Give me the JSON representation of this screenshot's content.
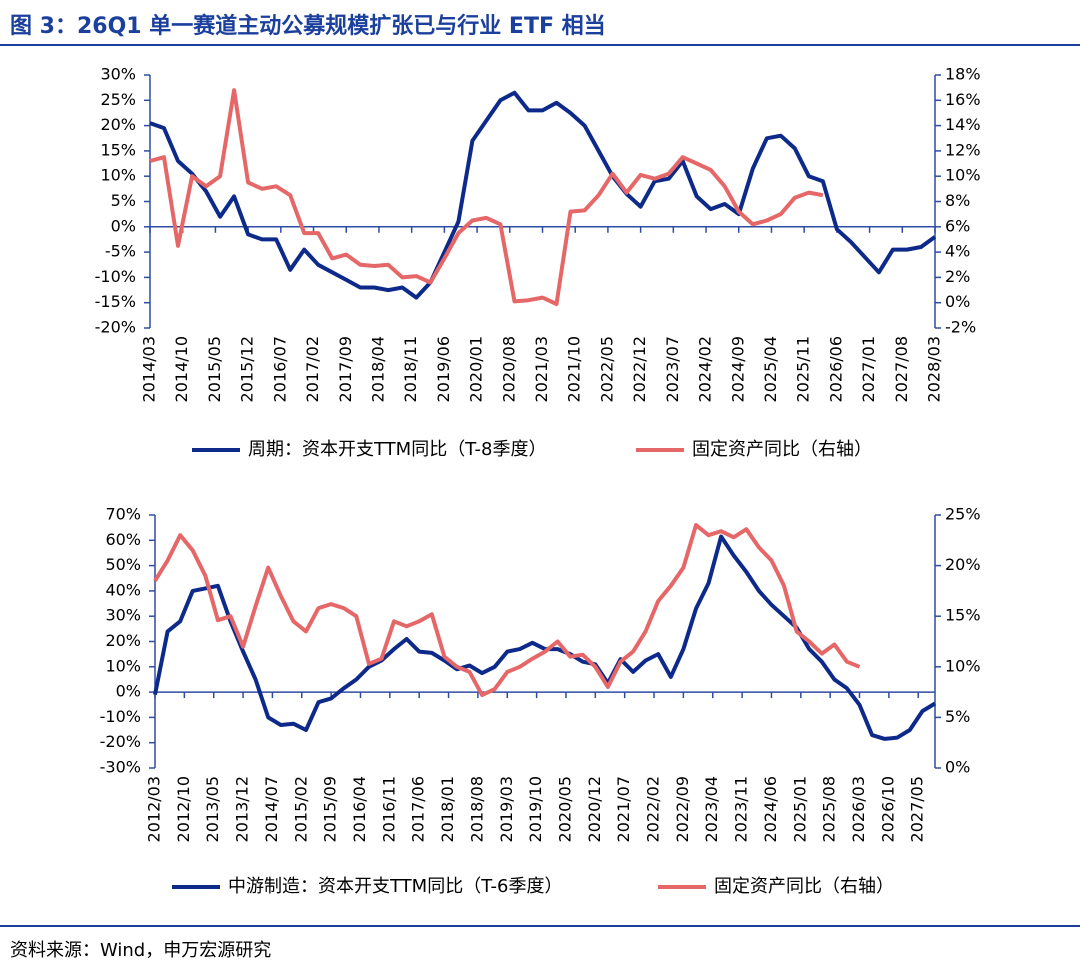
{
  "header": {
    "title": "图 3：26Q1 单一赛道主动公募规模扩张已与行业 ETF 相当"
  },
  "footer": {
    "source": "资料来源：Wind，申万宏源研究"
  },
  "chart_data": [
    {
      "type": "line",
      "x": [
        "2014/03",
        "2014/06",
        "2014/09",
        "2014/12",
        "2015/03",
        "2015/06",
        "2015/09",
        "2015/12",
        "2016/03",
        "2016/06",
        "2016/09",
        "2016/12",
        "2017/03",
        "2017/06",
        "2017/09",
        "2017/12",
        "2018/03",
        "2018/06",
        "2018/09",
        "2018/12",
        "2019/03",
        "2019/06",
        "2019/09",
        "2019/12",
        "2020/03",
        "2020/06",
        "2020/09",
        "2020/12",
        "2021/03",
        "2021/06",
        "2021/09",
        "2021/12",
        "2022/03",
        "2022/06",
        "2022/09",
        "2022/12",
        "2023/03",
        "2023/06",
        "2023/09",
        "2023/12",
        "2024/03",
        "2024/06",
        "2024/09",
        "2024/12",
        "2025/03",
        "2025/06",
        "2025/09",
        "2025/12",
        "2026/03",
        "2026/06",
        "2026/09",
        "2026/12",
        "2027/03",
        "2027/06",
        "2027/09",
        "2027/12",
        "2028/03"
      ],
      "xlim": [
        "2014/03",
        "2028/03"
      ],
      "xticks": [
        "2014/03",
        "2014/10",
        "2015/05",
        "2015/12",
        "2016/07",
        "2017/02",
        "2017/09",
        "2018/04",
        "2018/11",
        "2019/06",
        "2020/01",
        "2020/08",
        "2021/03",
        "2021/10",
        "2022/05",
        "2022/12",
        "2023/07",
        "2024/02",
        "2024/09",
        "2025/04",
        "2025/11",
        "2026/06",
        "2027/01",
        "2027/08",
        "2028/03"
      ],
      "ylim": [
        -20,
        30
      ],
      "yticks": [
        {
          "value": -20,
          "label": "-20%"
        },
        {
          "value": -15,
          "label": "-15%"
        },
        {
          "value": -10,
          "label": "-10%"
        },
        {
          "value": -5,
          "label": "-5%"
        },
        {
          "value": 0,
          "label": "0%"
        },
        {
          "value": 5,
          "label": "5%"
        },
        {
          "value": 10,
          "label": "10%"
        },
        {
          "value": 15,
          "label": "15%"
        },
        {
          "value": 20,
          "label": "20%"
        },
        {
          "value": 25,
          "label": "25%"
        },
        {
          "value": 30,
          "label": "30%"
        }
      ],
      "y2lim": [
        -2,
        18
      ],
      "y2ticks": [
        {
          "value": -2,
          "label": "-2%"
        },
        {
          "value": 0,
          "label": "0%"
        },
        {
          "value": 2,
          "label": "2%"
        },
        {
          "value": 4,
          "label": "4%"
        },
        {
          "value": 6,
          "label": "6%"
        },
        {
          "value": 8,
          "label": "8%"
        },
        {
          "value": 10,
          "label": "10%"
        },
        {
          "value": 12,
          "label": "12%"
        },
        {
          "value": 14,
          "label": "14%"
        },
        {
          "value": 16,
          "label": "16%"
        },
        {
          "value": 18,
          "label": "18%"
        }
      ],
      "series": [
        {
          "name": "周期：资本开支TTM同比（T-8季度）",
          "color": "#0d2a8a",
          "values": [
            20.5,
            19.5,
            13,
            10.5,
            7,
            2,
            6,
            -1.5,
            -2.5,
            -2.5,
            -8.5,
            -4.5,
            -7.5,
            -9,
            -10.5,
            -12,
            -12,
            -12.5,
            -12,
            -14,
            -11,
            -5,
            1,
            17,
            21,
            25,
            26.5,
            23,
            23,
            24.5,
            22.5,
            20,
            15,
            10,
            6.5,
            4,
            9,
            9.5,
            13,
            6,
            3.5,
            4.5,
            2.5,
            11.5,
            17.5,
            18,
            15.5,
            10,
            9,
            -0.5,
            -3,
            -6,
            -9,
            -4.5,
            -4.5,
            -4,
            -2
          ]
        },
        {
          "name": "固定资产同比（右轴）",
          "color": "#e56767",
          "axis": "y2",
          "values": [
            11.2,
            11.5,
            4.5,
            10,
            9.2,
            10,
            16.8,
            9.5,
            9,
            9.2,
            8.5,
            5.5,
            5.5,
            3.5,
            3.8,
            3.0,
            2.9,
            3.0,
            2.0,
            2.1,
            1.6,
            3.5,
            5.5,
            6.5,
            6.7,
            6.2,
            0.1,
            0.2,
            0.4,
            -0.1,
            7.2,
            7.3,
            8.5,
            10.2,
            8.7,
            10.1,
            9.8,
            10.2,
            11.5,
            11,
            10.5,
            9.2,
            7.2,
            6.2,
            6.5,
            7,
            8.3,
            8.7,
            8.5,
            null,
            null,
            null,
            null,
            null,
            null,
            null,
            null
          ]
        }
      ]
    },
    {
      "type": "line",
      "x": [
        "2012/03",
        "2012/06",
        "2012/09",
        "2012/12",
        "2013/03",
        "2013/06",
        "2013/09",
        "2013/12",
        "2014/03",
        "2014/06",
        "2014/09",
        "2014/12",
        "2015/03",
        "2015/06",
        "2015/09",
        "2015/12",
        "2016/03",
        "2016/06",
        "2016/09",
        "2016/12",
        "2017/03",
        "2017/06",
        "2017/09",
        "2017/12",
        "2018/03",
        "2018/06",
        "2018/09",
        "2018/12",
        "2019/03",
        "2019/06",
        "2019/09",
        "2019/12",
        "2020/03",
        "2020/06",
        "2020/09",
        "2020/12",
        "2021/03",
        "2021/06",
        "2021/09",
        "2021/12",
        "2022/03",
        "2022/06",
        "2022/09",
        "2022/12",
        "2023/03",
        "2023/06",
        "2023/09",
        "2023/12",
        "2024/03",
        "2024/06",
        "2024/09",
        "2024/12",
        "2025/03",
        "2025/06",
        "2025/09",
        "2025/12",
        "2026/03",
        "2026/06",
        "2026/09",
        "2026/12",
        "2027/03",
        "2027/06",
        "2027/09"
      ],
      "xlim": [
        "2012/03",
        "2027/09"
      ],
      "xticks": [
        "2012/03",
        "2012/10",
        "2013/05",
        "2013/12",
        "2014/07",
        "2015/02",
        "2015/09",
        "2016/04",
        "2016/11",
        "2017/06",
        "2018/01",
        "2018/08",
        "2019/03",
        "2019/10",
        "2020/05",
        "2020/12",
        "2021/07",
        "2022/02",
        "2022/09",
        "2023/04",
        "2023/11",
        "2024/06",
        "2025/01",
        "2025/08",
        "2026/03",
        "2026/10",
        "2027/05"
      ],
      "ylim": [
        -30,
        70
      ],
      "yticks": [
        {
          "value": -30,
          "label": "-30%"
        },
        {
          "value": -20,
          "label": "-20%"
        },
        {
          "value": -10,
          "label": "-10%"
        },
        {
          "value": 0,
          "label": "0%"
        },
        {
          "value": 10,
          "label": "10%"
        },
        {
          "value": 20,
          "label": "20%"
        },
        {
          "value": 30,
          "label": "30%"
        },
        {
          "value": 40,
          "label": "40%"
        },
        {
          "value": 50,
          "label": "50%"
        },
        {
          "value": 60,
          "label": "60%"
        },
        {
          "value": 70,
          "label": "70%"
        }
      ],
      "y2lim": [
        0,
        25
      ],
      "y2ticks": [
        {
          "value": 0,
          "label": "0%"
        },
        {
          "value": 5,
          "label": "5%"
        },
        {
          "value": 10,
          "label": "10%"
        },
        {
          "value": 15,
          "label": "15%"
        },
        {
          "value": 20,
          "label": "20%"
        },
        {
          "value": 25,
          "label": "25%"
        }
      ],
      "series": [
        {
          "name": "中游制造：资本开支TTM同比（T-6季度）",
          "color": "#0d2a8a",
          "values": [
            -1,
            24,
            28,
            40,
            41,
            42,
            28,
            16,
            5,
            -10,
            -13,
            -12.5,
            -15,
            -4,
            -2.5,
            1.5,
            5,
            10,
            12.5,
            17,
            21,
            16,
            15.5,
            12.5,
            9,
            10.5,
            7.5,
            10,
            16,
            17,
            19.5,
            17,
            17,
            15,
            12,
            11,
            3.5,
            13,
            8,
            12.5,
            15,
            6,
            17,
            33,
            43,
            61.5,
            54,
            47.5,
            40,
            34.5,
            30,
            25.5,
            17,
            12,
            5,
            1.5,
            -5,
            -17,
            -18.5,
            -18,
            -15,
            -7.5,
            -4.5
          ]
        },
        {
          "name": "固定资产同比（右轴）",
          "color": "#e56767",
          "axis": "y2",
          "values": [
            18.5,
            20.5,
            23,
            21.5,
            19,
            14.6,
            15,
            12,
            16,
            19.8,
            17,
            14.5,
            13.5,
            15.8,
            16.2,
            15.8,
            15,
            10.3,
            10.8,
            14.5,
            14,
            14.5,
            15.2,
            11,
            10,
            9.5,
            7.2,
            7.8,
            9.5,
            10,
            10.8,
            11.5,
            12.5,
            11,
            11.2,
            10,
            8,
            10.5,
            11.5,
            13.5,
            16.5,
            18,
            19.8,
            24,
            23,
            23.4,
            22.8,
            23.6,
            21.8,
            20.5,
            18,
            13.5,
            12.5,
            11.3,
            12.2,
            10.5,
            10,
            null,
            null,
            null,
            null,
            null,
            null
          ]
        }
      ]
    }
  ]
}
